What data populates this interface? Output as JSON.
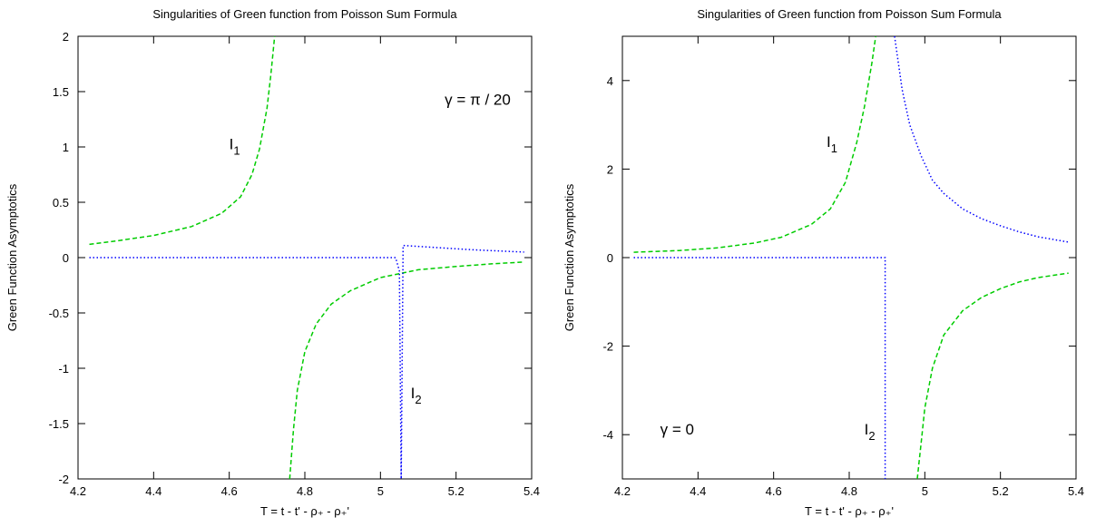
{
  "chart_data": [
    {
      "type": "line",
      "title": "Singularities of Green function from Poisson Sum Formula",
      "xlabel": "T = t - t' - ρ₊ - ρ₊'",
      "ylabel": "Green Function Asymptotics",
      "xlim": [
        4.2,
        5.4
      ],
      "ylim": [
        -2,
        2
      ],
      "xticks": [
        "4.2",
        "4.4",
        "4.6",
        "4.8",
        "5",
        "5.2",
        "5.4"
      ],
      "yticks": [
        "-2",
        "-1.5",
        "-1",
        "-0.5",
        "0",
        "0.5",
        "1",
        "1.5",
        "2"
      ],
      "grid": false,
      "annotations": [
        {
          "text": "γ = π / 20",
          "x": 5.17,
          "y": 1.38
        },
        {
          "text": "I",
          "sub": "1",
          "x": 4.6,
          "y": 0.98
        },
        {
          "text": "I",
          "sub": "2",
          "x": 5.08,
          "y": -1.27
        }
      ],
      "series": [
        {
          "id": "I1-left",
          "color": "#00cc00",
          "dash": "dashed",
          "x": [
            4.23,
            4.3,
            4.4,
            4.5,
            4.58,
            4.63,
            4.66,
            4.68,
            4.7,
            4.71,
            4.72
          ],
          "y": [
            0.12,
            0.15,
            0.2,
            0.28,
            0.4,
            0.55,
            0.75,
            0.98,
            1.35,
            1.65,
            2.0
          ]
        },
        {
          "id": "I1-right",
          "color": "#00cc00",
          "dash": "dashed",
          "x": [
            4.76,
            4.77,
            4.78,
            4.8,
            4.83,
            4.87,
            4.92,
            5.0,
            5.1,
            5.2,
            5.3,
            5.38
          ],
          "y": [
            -2.0,
            -1.55,
            -1.2,
            -0.85,
            -0.6,
            -0.42,
            -0.3,
            -0.18,
            -0.11,
            -0.08,
            -0.055,
            -0.04
          ]
        },
        {
          "id": "I2",
          "color": "#0000ff",
          "dash": "dotted",
          "x": [
            4.23,
            5.04,
            5.05,
            5.055,
            5.06,
            5.15,
            5.25,
            5.38
          ],
          "y": [
            0.0,
            0.0,
            -0.12,
            -2.0,
            0.11,
            0.09,
            0.07,
            0.05
          ]
        }
      ]
    },
    {
      "type": "line",
      "title": "Singularities of Green function from Poisson Sum Formula",
      "xlabel": "T = t - t' - ρ₊ - ρ₊'",
      "ylabel": "Green Function Asymptotics",
      "xlim": [
        4.2,
        5.4
      ],
      "ylim": [
        -5,
        5
      ],
      "xticks": [
        "4.2",
        "4.4",
        "4.6",
        "4.8",
        "5",
        "5.2",
        "5.4"
      ],
      "yticks": [
        "-4",
        "-2",
        "0",
        "2",
        "4"
      ],
      "grid": false,
      "annotations": [
        {
          "text": "γ = 0",
          "x": 4.3,
          "y": -4.0
        },
        {
          "text": "I",
          "sub": "1",
          "x": 4.74,
          "y": 2.5
        },
        {
          "text": "I",
          "sub": "2",
          "x": 4.84,
          "y": -4.0
        }
      ],
      "series": [
        {
          "id": "I1-left",
          "color": "#00cc00",
          "dash": "dashed",
          "x": [
            4.23,
            4.35,
            4.45,
            4.55,
            4.62,
            4.7,
            4.75,
            4.79,
            4.82,
            4.84,
            4.86,
            4.87
          ],
          "y": [
            0.12,
            0.16,
            0.22,
            0.33,
            0.46,
            0.75,
            1.1,
            1.7,
            2.6,
            3.4,
            4.4,
            5.0
          ]
        },
        {
          "id": "I1-right",
          "color": "#00cc00",
          "dash": "dashed",
          "x": [
            4.98,
            4.99,
            5.0,
            5.02,
            5.05,
            5.1,
            5.15,
            5.2,
            5.25,
            5.3,
            5.38
          ],
          "y": [
            -5.0,
            -4.2,
            -3.4,
            -2.5,
            -1.75,
            -1.2,
            -0.9,
            -0.7,
            -0.55,
            -0.45,
            -0.35
          ]
        },
        {
          "id": "I2-right",
          "color": "#0000ff",
          "dash": "dotted",
          "x": [
            4.92,
            4.94,
            4.96,
            4.99,
            5.02,
            5.05,
            5.1,
            5.15,
            5.2,
            5.25,
            5.3,
            5.38
          ],
          "y": [
            5.0,
            3.8,
            3.0,
            2.3,
            1.75,
            1.45,
            1.1,
            0.88,
            0.72,
            0.58,
            0.47,
            0.35
          ]
        },
        {
          "id": "I2-step",
          "color": "#0000ff",
          "dash": "dotted",
          "x": [
            4.23,
            4.895,
            4.895
          ],
          "y": [
            0.0,
            0.0,
            -5.0
          ]
        }
      ]
    }
  ]
}
